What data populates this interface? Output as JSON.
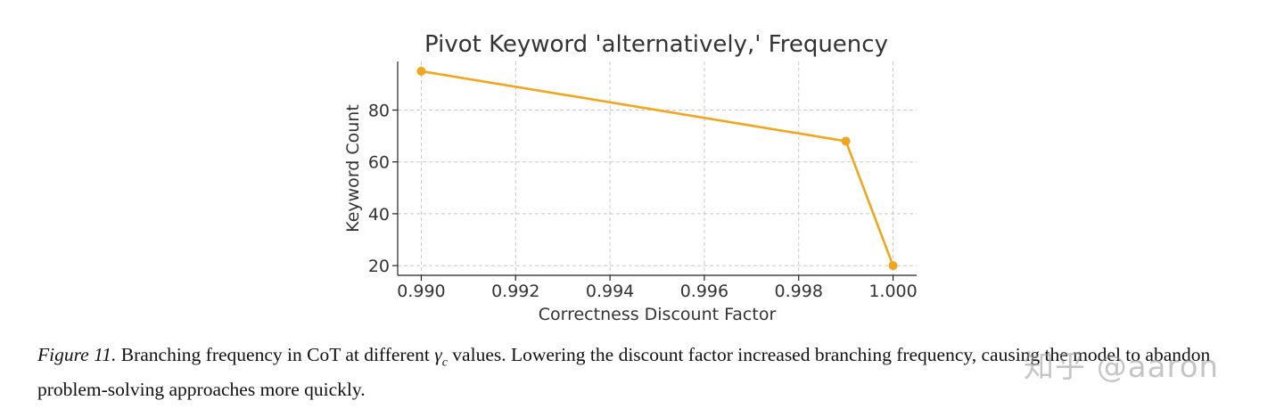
{
  "chart_data": {
    "type": "line",
    "title": "Pivot Keyword 'alternatively,' Frequency",
    "xlabel": "Correctness Discount Factor",
    "ylabel": "Keyword Count",
    "x": [
      0.99,
      0.999,
      1.0
    ],
    "series": [
      {
        "values": [
          95,
          68,
          20
        ]
      }
    ],
    "xticks": [
      "0.990",
      "0.992",
      "0.994",
      "0.996",
      "0.998",
      "1.000"
    ],
    "xtick_values": [
      0.99,
      0.992,
      0.994,
      0.996,
      0.998,
      1.0
    ],
    "yticks": [
      "20",
      "40",
      "60",
      "80"
    ],
    "ytick_values": [
      20,
      40,
      60,
      80
    ],
    "xlim": [
      0.9895,
      1.0005
    ],
    "ylim": [
      16.25,
      98.75
    ],
    "grid": true,
    "line_color": "#f0a61e"
  },
  "caption": {
    "label": "Figure 11.",
    "text_before_symbol": " Branching frequency in CoT at different ",
    "symbol": "γ",
    "symbol_subscript": "c",
    "text_after_symbol": " values. Lowering the discount factor increased branching frequency, causing the model to abandon problem-solving approaches more quickly."
  },
  "watermark": {
    "text": "知乎 @aaron"
  }
}
